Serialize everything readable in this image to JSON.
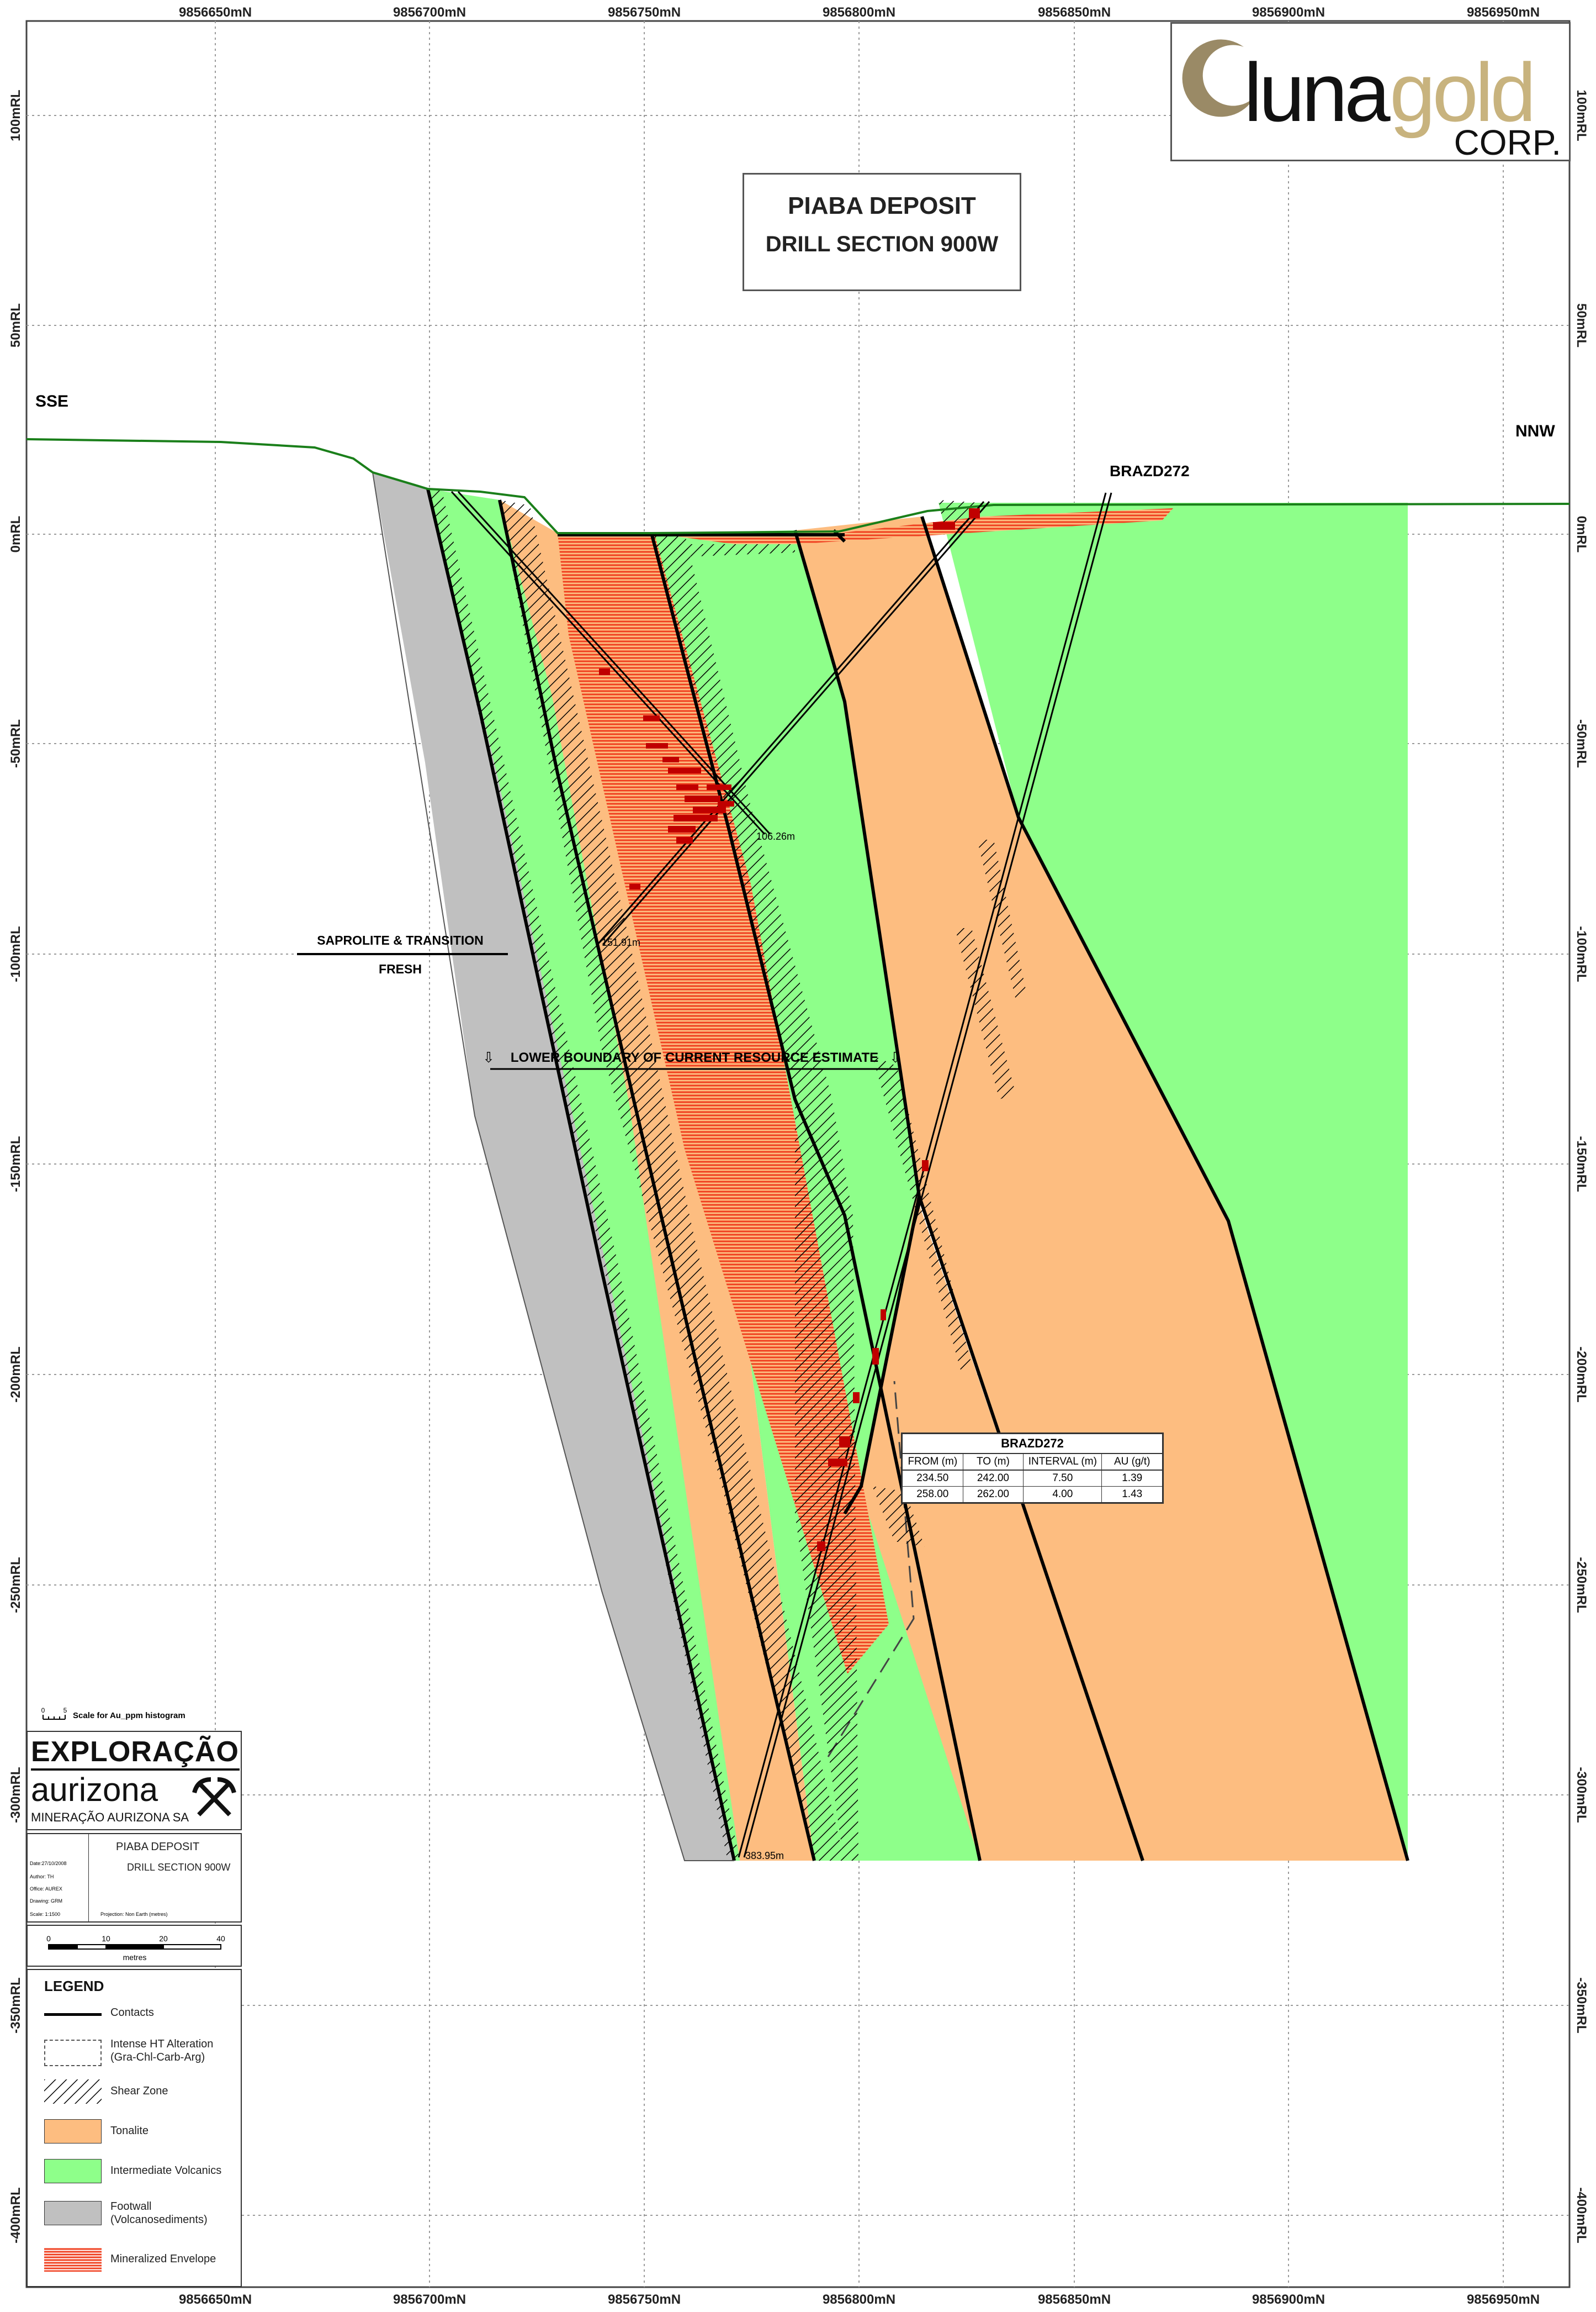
{
  "title": {
    "line1": "PIABA DEPOSIT",
    "line2": "DRILL SECTION 900W"
  },
  "logo": {
    "word1": "luna",
    "word2": "gold",
    "word3": "CORP."
  },
  "compass": {
    "left": "SSE",
    "right": "NNW"
  },
  "axes": {
    "northing_labels": [
      "9856650mN",
      "9856700mN",
      "9856750mN",
      "9856800mN",
      "9856850mN",
      "9856900mN",
      "9856950mN"
    ],
    "rl_labels": [
      "100mRL",
      "50mRL",
      "0mRL",
      "-50mRL",
      "-100mRL",
      "-150mRL",
      "-200mRL",
      "-250mRL",
      "-300mRL",
      "-350mRL",
      "-400mRL"
    ]
  },
  "annotations": {
    "hole_name": "BRAZD272",
    "saprolite": "SAPROLITE & TRANSITION",
    "fresh": "FRESH",
    "resource_boundary": "LOWER BOUNDARY OF CURRENT RESOURCE ESTIMATE",
    "depth_1": "106.26m",
    "depth_2": "151.91m",
    "depth_3": "383.95m",
    "histogram_scale": "Scale for Au_ppm histogram",
    "histogram_ticks": [
      "0",
      "5"
    ]
  },
  "colors": {
    "tonalite": "#fdbd80",
    "volcanics": "#8eff8a",
    "footwall": "#c0c0c0",
    "envelope": "#f05030",
    "mineral": "#c00000",
    "topo": "#1a7f1a"
  },
  "intercepts": {
    "title": "BRAZD272",
    "headers": [
      "FROM (m)",
      "TO (m)",
      "INTERVAL (m)",
      "AU (g/t)"
    ],
    "rows": [
      [
        "234.50",
        "242.00",
        "7.50",
        "1.39"
      ],
      [
        "258.00",
        "262.00",
        "4.00",
        "1.43"
      ]
    ]
  },
  "company": {
    "line1": "EXPLORAÇÃO",
    "line2": "aurizona",
    "line3": "MINERAÇÃO AURIZONA SA"
  },
  "infobox": {
    "title1": "PIABA DEPOSIT",
    "title2": "DRILL SECTION 900W",
    "fields": [
      "Date:27/10/2008",
      "Author: TH",
      "Office: AUREX",
      "Drawing: GRM",
      "Scale: 1:1500"
    ],
    "projection": "Projection: Non Earth (metres)",
    "scale_ticks": [
      "0",
      "10",
      "20",
      "40"
    ],
    "scale_unit": "metres"
  },
  "legend": {
    "title": "LEGEND",
    "items": [
      {
        "label": "Contacts"
      },
      {
        "label": "Intense HT Alteration\n(Gra-Chl-Carb-Arg)"
      },
      {
        "label": "Shear Zone"
      },
      {
        "label": "Tonalite"
      },
      {
        "label": "Intermediate Volcanics"
      },
      {
        "label": "Footwall\n(Volcanosediments)"
      },
      {
        "label": "Mineralized Envelope"
      }
    ]
  }
}
